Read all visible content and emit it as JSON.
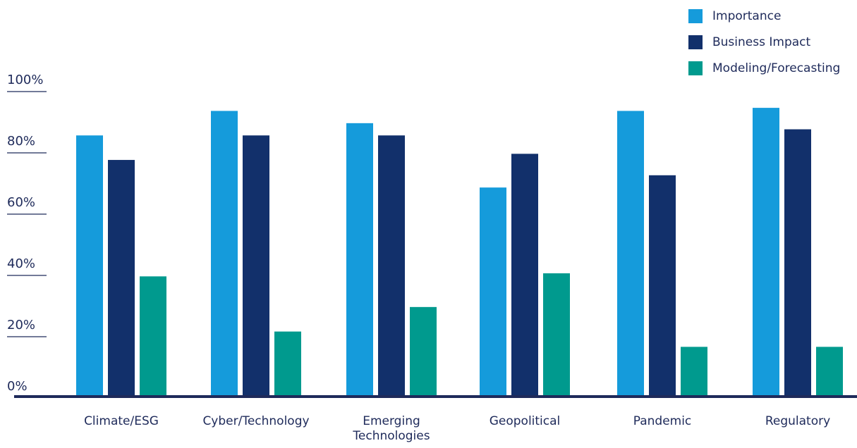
{
  "chart_data": {
    "type": "bar",
    "categories": [
      "Climate/ESG",
      "Cyber/Technology",
      "Emerging Technologies",
      "Geopolitical",
      "Pandemic",
      "Regulatory"
    ],
    "category_labels": [
      "Climate/ESG",
      "Cyber/Technology",
      "Emerging\nTechnologies",
      "Geopolitical",
      "Pandemic",
      "Regulatory"
    ],
    "series": [
      {
        "name": "Importance",
        "color": "#159bdb",
        "values": [
          85,
          93,
          89,
          68,
          93,
          94
        ]
      },
      {
        "name": "Business Impact",
        "color": "#12306b",
        "values": [
          77,
          85,
          85,
          79,
          72,
          87
        ]
      },
      {
        "name": "Modeling/Forecasting",
        "color": "#009a8e",
        "values": [
          39,
          21,
          29,
          40,
          16,
          16
        ]
      }
    ],
    "yticks": [
      "0%",
      "20%",
      "40%",
      "60%",
      "80%",
      "100%"
    ],
    "ylim": [
      0,
      100
    ],
    "grid": false,
    "legend_position": "top-right",
    "axis_color": "#1e2a5a",
    "text_color": "#1e2a5a"
  }
}
